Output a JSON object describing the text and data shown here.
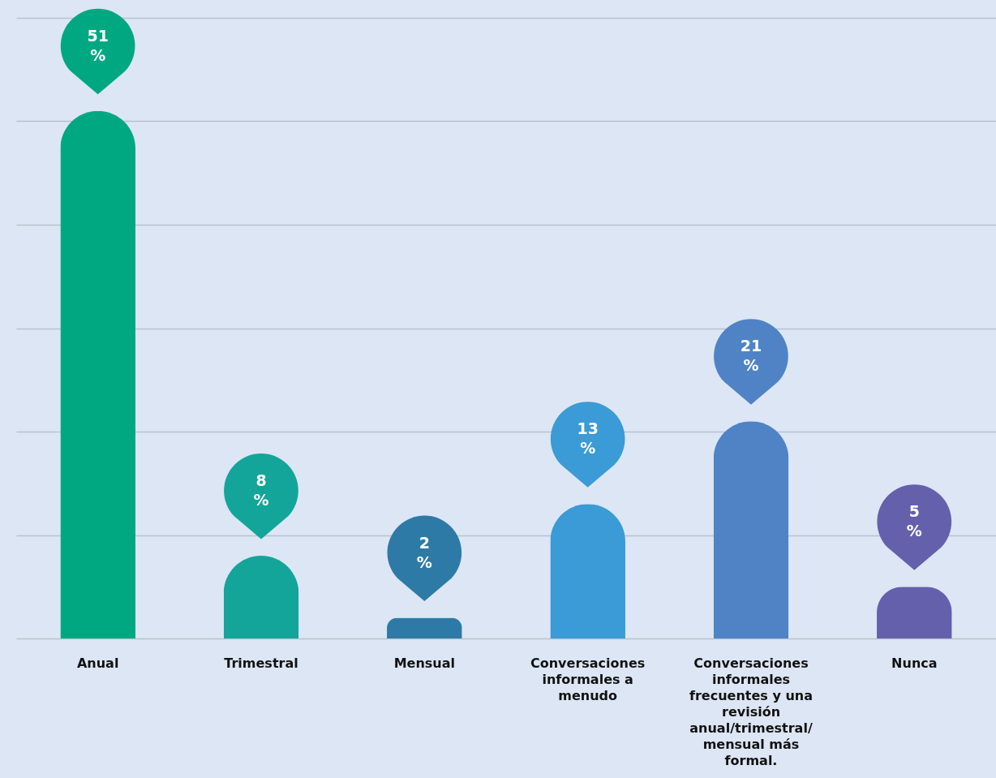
{
  "chart_data": {
    "type": "bar",
    "categories": [
      "Anual",
      "Trimestral",
      "Mensual",
      "Conversaciones informales a menudo",
      "Conversaciones informales frecuentes y una revisión anual/trimestral/ mensual más formal.",
      "Nunca"
    ],
    "values": [
      51,
      8,
      2,
      13,
      21,
      5
    ],
    "colors": [
      "#00a882",
      "#14a59a",
      "#2e7aa6",
      "#3a9bd6",
      "#4f83c6",
      "#6460ab"
    ],
    "value_labels": [
      "51 %",
      "8 %",
      "2 %",
      "13 %",
      "21 %",
      "5 %"
    ],
    "ylim": [
      0,
      60
    ],
    "yticks": [
      {
        "value": 0,
        "label": null
      },
      {
        "value": 10,
        "label": null
      },
      {
        "value": 20,
        "label": null
      },
      {
        "value": 30,
        "label": null
      },
      {
        "value": 40,
        "label": null
      },
      {
        "value": 50,
        "label": null
      },
      {
        "value": 60,
        "label": null
      }
    ],
    "grid": "y",
    "tick_labels": "x"
  }
}
